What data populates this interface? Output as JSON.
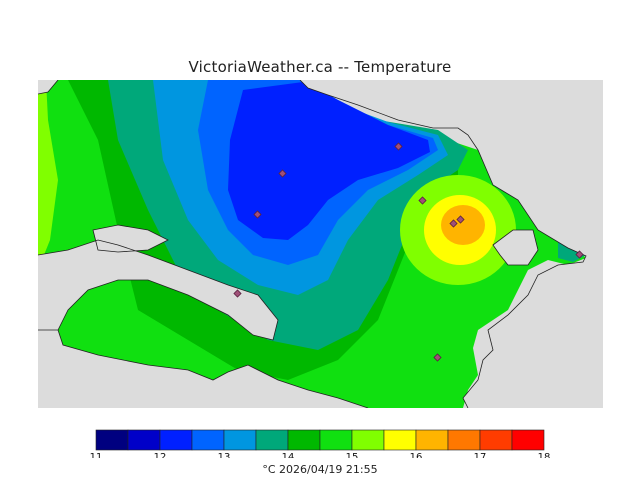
{
  "title": "VictoriaWeather.ca -- Temperature",
  "footer": {
    "unit": "°C",
    "timestamp": "2026/04/19 21:55"
  },
  "legend": {
    "ticks": [
      "11",
      "12",
      "13",
      "14",
      "15",
      "16",
      "17",
      "18"
    ],
    "colors": [
      "#000080",
      "#0000c8",
      "#0020ff",
      "#0064ff",
      "#0096e0",
      "#00a87a",
      "#00b800",
      "#10e010",
      "#80ff00",
      "#ffff00",
      "#ffb400",
      "#ff7800",
      "#ff3c00",
      "#ff0000"
    ]
  },
  "map_colors": {
    "land_background": "#dcdcdc",
    "water": "#dcdcdc",
    "station_marker": "#a05078"
  },
  "stations": {
    "count": 9
  }
}
